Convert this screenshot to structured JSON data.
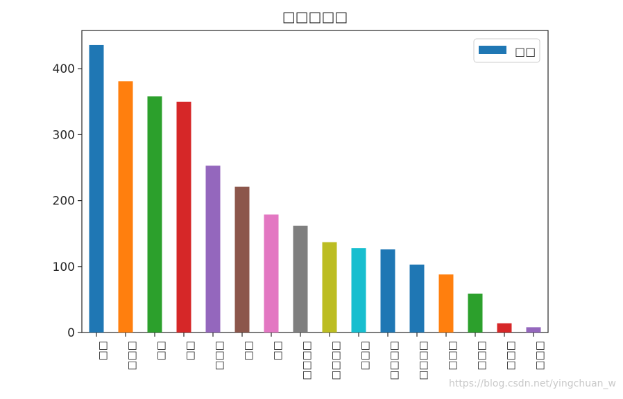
{
  "chart_data": {
    "type": "bar",
    "title": "□□□□□",
    "xlabel": "",
    "ylabel": "",
    "categories": [
      "□□",
      "□□□",
      "□□",
      "□□",
      "□□□",
      "□□",
      "□□",
      "□□□□",
      "□□□□",
      "□□□",
      "□□□□",
      "□□□□",
      "□□□",
      "□□□",
      "□□□",
      "□□□"
    ],
    "values": [
      436,
      381,
      358,
      350,
      253,
      221,
      179,
      162,
      137,
      128,
      126,
      103,
      88,
      59,
      14,
      8
    ],
    "bar_colors": [
      "#1f77b4",
      "#ff7f0e",
      "#2ca02c",
      "#d62728",
      "#9467bd",
      "#8c564b",
      "#e377c2",
      "#7f7f7f",
      "#bcbd22",
      "#17becf",
      "#1f77b4",
      "#1f77b4",
      "#ff7f0e",
      "#2ca02c",
      "#d62728",
      "#9467bd"
    ],
    "ylim": [
      0,
      458
    ],
    "yticks": [
      0,
      100,
      200,
      300,
      400
    ],
    "legend": {
      "position": "top-right",
      "label": "□□",
      "color": "#1f77b4"
    },
    "grid": false
  },
  "watermark": "https://blog.csdn.net/yingchuan_w"
}
